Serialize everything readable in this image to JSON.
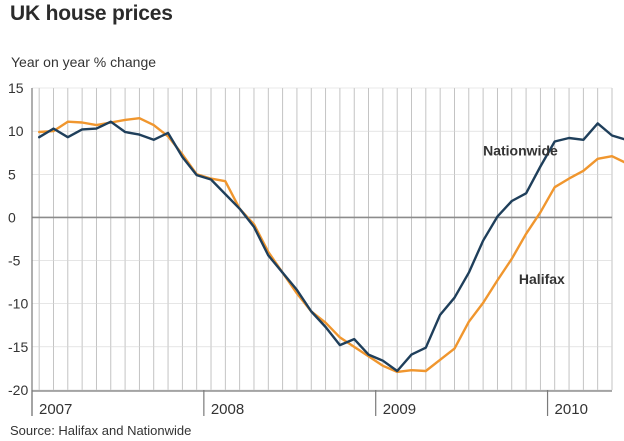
{
  "title": "UK house prices",
  "ylabel": "Year on year % change",
  "source": "Source: Halifax and Nationwide",
  "colors": {
    "nationwide": "#1f3f5b",
    "halifax": "#f0962e",
    "grid": "#bdbdbd",
    "zero": "#8c8c8c"
  },
  "chart_data": {
    "type": "line",
    "title": "UK house prices",
    "ylabel": "Year on year % change",
    "ylim": [
      -20,
      15
    ],
    "yticks": [
      15,
      10,
      5,
      0,
      -5,
      -10,
      -15,
      -20
    ],
    "xlim": [
      0,
      40.5
    ],
    "xticks": [
      {
        "label": "2007",
        "x": 0
      },
      {
        "label": "2008",
        "x": 12
      },
      {
        "label": "2009",
        "x": 24
      },
      {
        "label": "2010",
        "x": 36
      }
    ],
    "grid": true,
    "series": [
      {
        "name": "Nationwide",
        "values": [
          9.3,
          10.3,
          9.3,
          10.2,
          10.3,
          11.1,
          9.9,
          9.6,
          9.0,
          9.8,
          7.0,
          4.9,
          4.4,
          2.7,
          1.0,
          -1.1,
          -4.4,
          -6.4,
          -8.4,
          -10.9,
          -12.7,
          -14.8,
          -14.1,
          -15.9,
          -16.6,
          -17.8,
          -15.9,
          -15.1,
          -11.3,
          -9.3,
          -6.4,
          -2.7,
          0.1,
          1.9,
          2.8,
          5.9,
          8.8,
          9.2,
          9.0,
          10.9,
          9.5,
          9.0,
          6.3
        ]
      },
      {
        "name": "Halifax",
        "values": [
          9.9,
          10.0,
          11.1,
          11.0,
          10.7,
          11.0,
          11.3,
          11.5,
          10.7,
          9.4,
          7.3,
          5.0,
          4.5,
          4.2,
          1.0,
          -0.8,
          -4.0,
          -6.4,
          -8.8,
          -10.9,
          -12.2,
          -13.9,
          -15.0,
          -16.1,
          -17.2,
          -17.9,
          -17.7,
          -17.8,
          -16.5,
          -15.2,
          -12.1,
          -9.9,
          -7.3,
          -4.8,
          -1.9,
          0.6,
          3.5,
          4.5,
          5.4,
          6.8,
          7.1,
          6.3
        ]
      }
    ],
    "annotations": [
      {
        "text": "Nationwide",
        "x": 31.5,
        "y": 7.2
      },
      {
        "text": "Halifax",
        "x": 34.0,
        "y": -7.7
      }
    ]
  }
}
